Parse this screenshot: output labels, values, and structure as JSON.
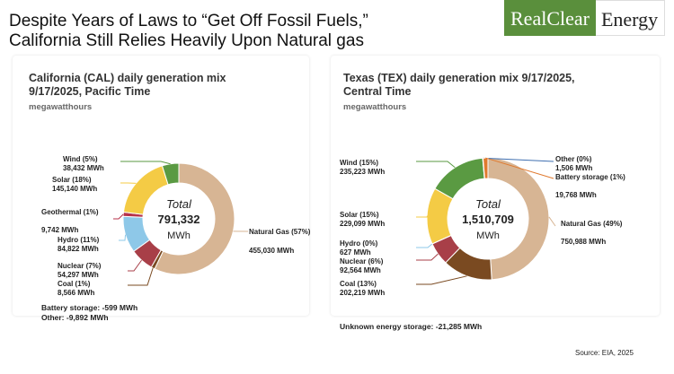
{
  "headline": {
    "line1": "Despite Years of Laws to “Get Off Fossil Fuels,”",
    "line2": "California Still Relies Heavily Upon Natural gas"
  },
  "brand": {
    "part1": "RealClear",
    "part2": "Energy",
    "color": "#5a8f3c"
  },
  "source": "Source: EIA, 2025",
  "chart_data": [
    {
      "type": "pie",
      "title_line1": "California (CAL) daily generation mix",
      "title_line2": "9/17/2025, Pacific Time",
      "unit_label": "megawatthours",
      "center": {
        "label": "Total",
        "value": "791,332",
        "unit": "MWh"
      },
      "slices": [
        {
          "name": "Natural Gas (57%)",
          "value_label": "455,030 MWh",
          "value": 455030,
          "color": "#d7b594"
        },
        {
          "name": "Coal (1%)",
          "value_label": "8,566 MWh",
          "value": 8566,
          "color": "#7a4a21"
        },
        {
          "name": "Nuclear (7%)",
          "value_label": "54,297 MWh",
          "value": 54297,
          "color": "#a83f48"
        },
        {
          "name": "Hydro (11%)",
          "value_label": "84,822 MWh",
          "value": 84822,
          "color": "#8ec8e8"
        },
        {
          "name": "Geothermal (1%)",
          "value_label": "9,742 MWh",
          "value": 9742,
          "color": "#b7324a"
        },
        {
          "name": "Solar (18%)",
          "value_label": "145,140 MWh",
          "value": 145140,
          "color": "#f4cb45"
        },
        {
          "name": "Wind (5%)",
          "value_label": "38,432 MWh",
          "value": 38432,
          "color": "#5a9a42"
        }
      ],
      "footnotes": [
        "Battery storage: -599 MWh",
        "Other: -9,892 MWh"
      ]
    },
    {
      "type": "pie",
      "title_line1": "Texas (TEX) daily generation mix 9/17/2025,",
      "title_line2": "Central Time",
      "unit_label": "megawatthours",
      "center": {
        "label": "Total",
        "value": "1,510,709",
        "unit": "MWh"
      },
      "slices": [
        {
          "name": "Natural Gas (49%)",
          "value_label": "750,988 MWh",
          "value": 750988,
          "color": "#d7b594"
        },
        {
          "name": "Coal (13%)",
          "value_label": "202,219 MWh",
          "value": 202219,
          "color": "#7a4a21"
        },
        {
          "name": "Nuclear (6%)",
          "value_label": "92,564 MWh",
          "value": 92564,
          "color": "#a83f48"
        },
        {
          "name": "Hydro (0%)",
          "value_label": "627 MWh",
          "value": 627,
          "color": "#8ec8e8"
        },
        {
          "name": "Solar (15%)",
          "value_label": "229,099 MWh",
          "value": 229099,
          "color": "#f4cb45"
        },
        {
          "name": "Wind (15%)",
          "value_label": "235,223 MWh",
          "value": 235223,
          "color": "#5a9a42"
        },
        {
          "name": "Other (0%)",
          "value_label": "1,506 MWh",
          "value": 1506,
          "color": "#3f6fb0"
        },
        {
          "name": "Battery storage (1%)",
          "value_label": "19,768 MWh",
          "value": 19768,
          "color": "#e07a2f"
        }
      ],
      "footnotes": [
        "Unknown energy storage: -21,285 MWh"
      ]
    }
  ]
}
